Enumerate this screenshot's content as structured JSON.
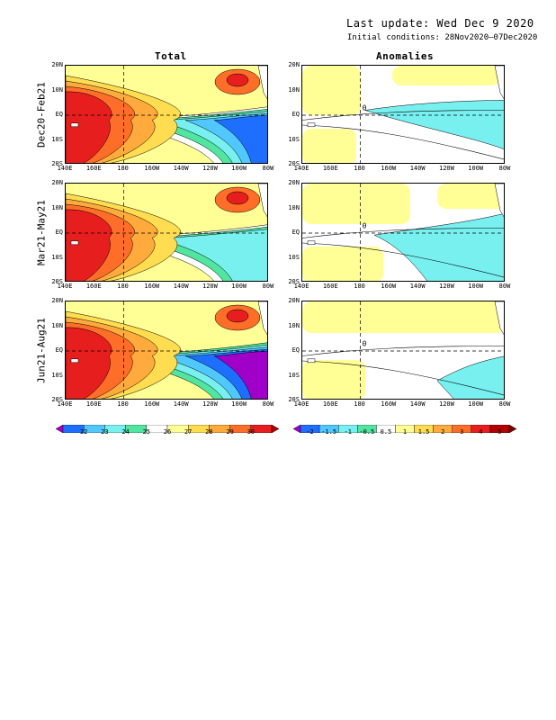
{
  "header": {
    "last_update": "Last update: Wed Dec 9 2020",
    "initial_conditions": "Initial conditions: 28Nov2020–07Dec2020"
  },
  "columns": {
    "total": "Total",
    "anomalies": "Anomalies"
  },
  "rows": [
    {
      "label": "Dec20-Feb21"
    },
    {
      "label": "Mar21-May21"
    },
    {
      "label": "Jun21-Aug21"
    }
  ],
  "axes": {
    "lat_labels": [
      "20N",
      "10N",
      "EQ",
      "10S",
      "20S"
    ],
    "lon_labels": [
      "140E",
      "160E",
      "180",
      "160W",
      "140W",
      "120W",
      "100W",
      "80W"
    ]
  },
  "contour_labels": {
    "anomaly_zero": "0"
  },
  "colorbars": {
    "total": {
      "labels": [
        "22",
        "23",
        "24",
        "25",
        "26",
        "27",
        "28",
        "29",
        "30"
      ],
      "colors": [
        "#a000c8",
        "#1e6eff",
        "#50c8ff",
        "#78f0f0",
        "#50e6a0",
        "#ffffff",
        "#ffff96",
        "#ffdc50",
        "#ffaa3c",
        "#ff6e28",
        "#e61e1e",
        "#b40000"
      ]
    },
    "anomalies": {
      "labels": [
        "-2",
        "-1.5",
        "-1",
        "-0.5",
        "0.5",
        "1",
        "1.5",
        "2",
        "3",
        "4",
        "5"
      ],
      "colors": [
        "#a000c8",
        "#1e6eff",
        "#50c8ff",
        "#78f0f0",
        "#50e6a0",
        "#ffffff",
        "#ffff96",
        "#ffdc50",
        "#ffaa3c",
        "#ff6e28",
        "#e61e1e",
        "#b40000",
        "#780000"
      ]
    }
  }
}
